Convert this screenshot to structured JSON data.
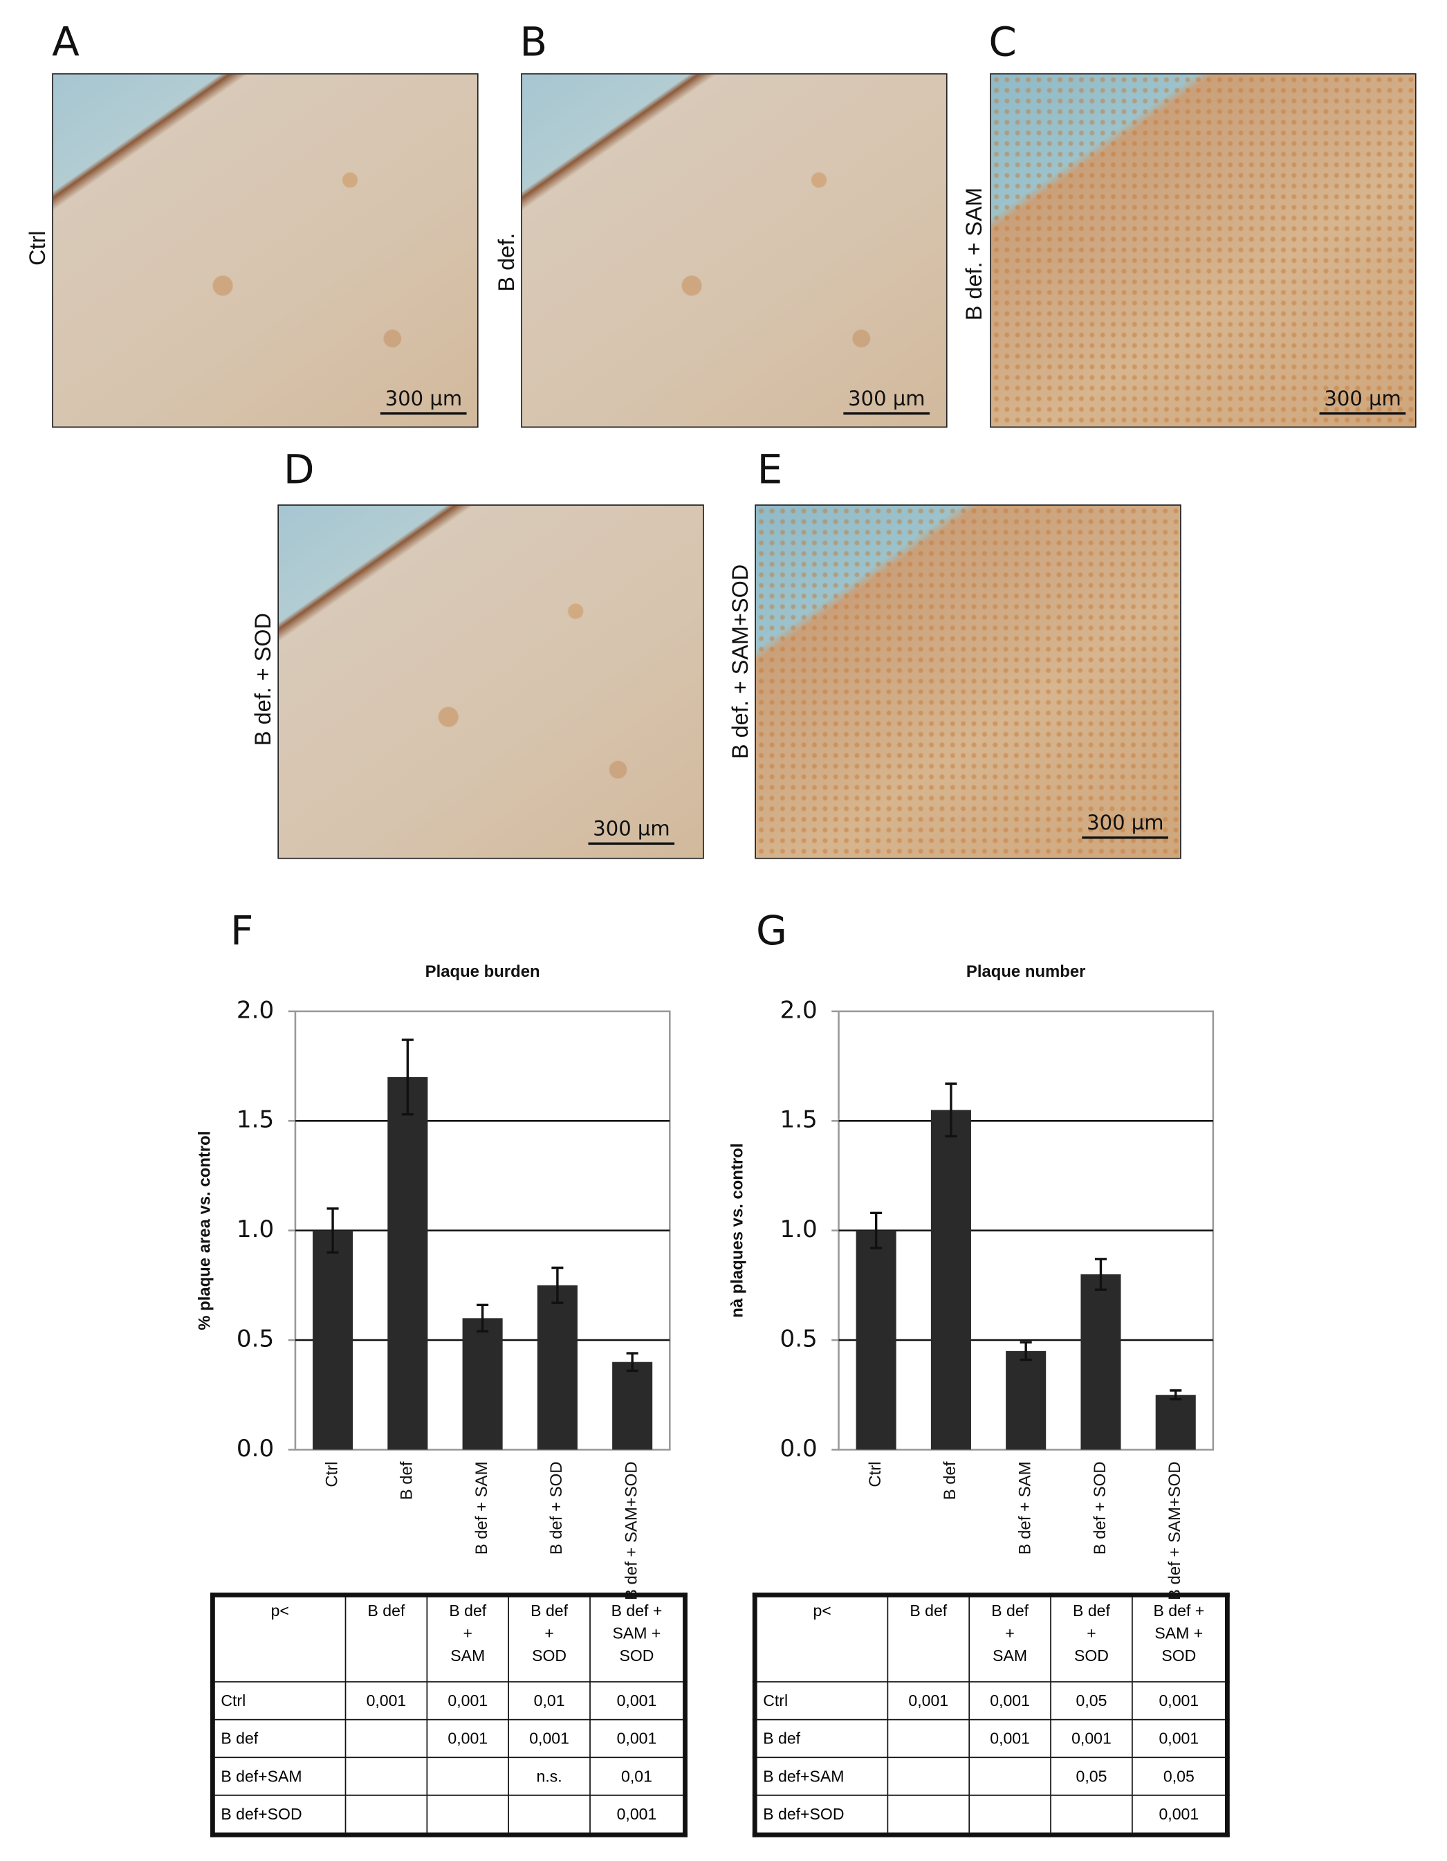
{
  "panels": [
    {
      "letter": "A",
      "label": "Ctrl",
      "scale": "300 µm"
    },
    {
      "letter": "B",
      "label": "B def.",
      "scale": "300 µm"
    },
    {
      "letter": "C",
      "label": "B def. + SAM",
      "scale": "300 µm"
    },
    {
      "letter": "D",
      "label": "B def. + SOD",
      "scale": "300 µm"
    },
    {
      "letter": "E",
      "label": "B def. + SAM+SOD",
      "scale": "300 µm"
    }
  ],
  "chart_data": [
    {
      "type": "bar",
      "panel": "F",
      "title": "Plaque burden",
      "ylabel": "% plaque area vs. control",
      "categories": [
        "Ctrl",
        "B def",
        "B def + SAM",
        "B def + SOD",
        "B def + SAM+SOD"
      ],
      "values": [
        1.0,
        1.7,
        0.6,
        0.75,
        0.4
      ],
      "errors": [
        0.1,
        0.17,
        0.06,
        0.08,
        0.04
      ],
      "color": "#2a2a2a",
      "ylim": [
        0,
        2
      ],
      "yticks": [
        {
          "value": 0,
          "label": "0.0"
        },
        0.5,
        {
          "value": 1,
          "label": "1.0"
        },
        1.5,
        {
          "value": 2,
          "label": "2.0"
        }
      ],
      "grid": true
    },
    {
      "type": "bar",
      "panel": "G",
      "title": "Plaque number",
      "ylabel": "nà plaques vs. control",
      "categories": [
        "Ctrl",
        "B def",
        "B def + SAM",
        "B def + SOD",
        "B def + SAM+SOD"
      ],
      "values": [
        1.0,
        1.55,
        0.45,
        0.8,
        0.25
      ],
      "errors": [
        0.08,
        0.12,
        0.04,
        0.07,
        0.02
      ],
      "color": "#2a2a2a",
      "ylim": [
        0,
        2
      ],
      "yticks": [
        {
          "value": 0,
          "label": "0.0"
        },
        0.5,
        {
          "value": 1,
          "label": "1.0"
        },
        1.5,
        {
          "value": 2,
          "label": "2.0"
        }
      ],
      "grid": true
    }
  ],
  "tables": [
    {
      "header": [
        "p<",
        "B def",
        "B def\n+\nSAM",
        "B def\n+\nSOD",
        "B def +\nSAM +\nSOD"
      ],
      "rows": [
        [
          "Ctrl",
          "0,001",
          "0,001",
          "0,01",
          "0,001"
        ],
        [
          "B def",
          null,
          "0,001",
          "0,001",
          "0,001"
        ],
        [
          "B def+SAM",
          null,
          null,
          "n.s.",
          "0,01"
        ],
        [
          "B def+SOD",
          null,
          null,
          null,
          "0,001"
        ]
      ]
    },
    {
      "header": [
        "p<",
        "B def",
        "B def\n+\nSAM",
        "B def\n+\nSOD",
        "B def +\nSAM +\nSOD"
      ],
      "rows": [
        [
          "Ctrl",
          "0,001",
          "0,001",
          "0,05",
          "0,001"
        ],
        [
          "B def",
          null,
          "0,001",
          "0,001",
          "0,001"
        ],
        [
          "B def+SAM",
          null,
          null,
          "0,05",
          "0,05"
        ],
        [
          "B def+SOD",
          null,
          null,
          null,
          "0,001"
        ]
      ]
    }
  ]
}
